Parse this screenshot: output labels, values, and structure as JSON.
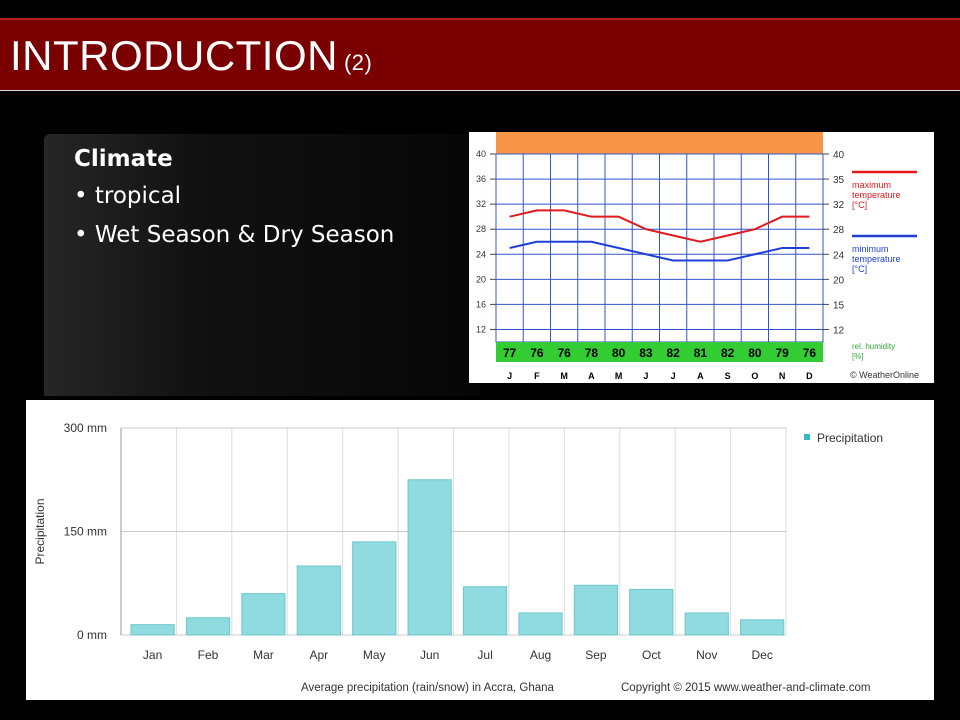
{
  "slide": {
    "title": "INTRODUCTION",
    "title_number": "(2)",
    "textbox": {
      "heading": "Climate",
      "bullets": [
        "tropical",
        "Wet Season & Dry Season"
      ]
    }
  },
  "colors": {
    "title_bar": "#7a0000",
    "temp_max": "#e31a1c",
    "temp_min": "#1f3fd6",
    "humidity_band": "#33cc33",
    "top_band": "#f79646",
    "precip_bar": "#8fdbe0"
  },
  "chart_data": [
    {
      "type": "line",
      "x": [
        "J",
        "F",
        "M",
        "A",
        "M",
        "J",
        "J",
        "A",
        "S",
        "O",
        "N",
        "D"
      ],
      "series": [
        {
          "name": "maximum temperature [°C]",
          "values": [
            30,
            31,
            31,
            30,
            30,
            28,
            27,
            26,
            27,
            28,
            30,
            30
          ]
        },
        {
          "name": "minimum temperature [°C]",
          "values": [
            25,
            26,
            26,
            26,
            25,
            24,
            23,
            23,
            23,
            24,
            25,
            25
          ]
        }
      ],
      "humidity": [
        77,
        76,
        76,
        78,
        80,
        83,
        82,
        81,
        82,
        80,
        79,
        76
      ],
      "humidity_label": "rel. humidity [%]",
      "yticks": [
        12,
        16,
        20,
        24,
        28,
        32,
        36,
        40
      ],
      "yticks_right": [
        12,
        15,
        20,
        24,
        28,
        32,
        35,
        40
      ],
      "ylim": [
        10,
        40
      ],
      "legend": "right",
      "grid": true,
      "credit": "© WeatherOnline"
    },
    {
      "type": "bar",
      "categories": [
        "Jan",
        "Feb",
        "Mar",
        "Apr",
        "May",
        "Jun",
        "Jul",
        "Aug",
        "Sep",
        "Oct",
        "Nov",
        "Dec"
      ],
      "series": [
        {
          "name": "Precipitation",
          "values": [
            15,
            25,
            60,
            100,
            135,
            225,
            70,
            32,
            72,
            66,
            32,
            22
          ]
        }
      ],
      "ylabel": "Precipitation",
      "yticks": [
        "300 mm",
        "150 mm",
        "0 mm"
      ],
      "ylim": [
        0,
        300
      ],
      "grid": true,
      "legend": "top-right",
      "caption": "Average precipitation (rain/snow) in Accra, Ghana",
      "copyright": "Copyright © 2015 www.weather-and-climate.com"
    }
  ]
}
